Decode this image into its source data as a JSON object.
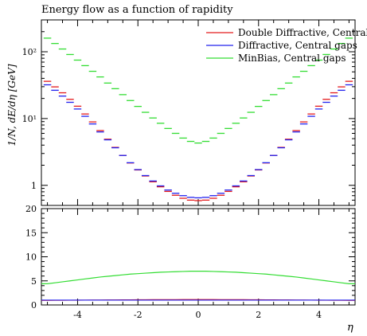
{
  "title": "Energy flow as a function of rapidity",
  "ylabel": "1/N, dE/dη [GeV]",
  "xlabel": "η",
  "chart_data": [
    {
      "type": "line",
      "panel": "main",
      "yscale": "log",
      "ylim": [
        0.5,
        300
      ],
      "xlim": [
        -5.2,
        5.2
      ],
      "yticks": [
        {
          "v": 1,
          "label": "1"
        },
        {
          "v": 10,
          "label": "10¹"
        },
        {
          "v": 100,
          "label": "10²"
        }
      ],
      "legend": "top-right",
      "x": [
        -5.0,
        -4.75,
        -4.5,
        -4.25,
        -4.0,
        -3.75,
        -3.5,
        -3.25,
        -3.0,
        -2.75,
        -2.5,
        -2.25,
        -2.0,
        -1.75,
        -1.5,
        -1.25,
        -1.0,
        -0.75,
        -0.5,
        -0.25,
        0.0,
        0.25,
        0.5,
        0.75,
        1.0,
        1.25,
        1.5,
        1.75,
        2.0,
        2.25,
        2.5,
        2.75,
        3.0,
        3.25,
        3.5,
        3.75,
        4.0,
        4.25,
        4.5,
        4.75,
        5.0
      ],
      "series": [
        {
          "name": "Double Diffractive, Central gaps",
          "color": "#e41a1c",
          "values": [
            36.1,
            29.8,
            24.3,
            19.4,
            15.3,
            11.7,
            8.9,
            6.6,
            4.9,
            3.7,
            2.8,
            2.16,
            1.7,
            1.38,
            1.13,
            0.95,
            0.81,
            0.71,
            0.64,
            0.6,
            0.59,
            0.6,
            0.64,
            0.71,
            0.81,
            0.95,
            1.13,
            1.38,
            1.7,
            2.16,
            2.8,
            3.7,
            4.9,
            6.6,
            8.9,
            11.7,
            15.3,
            19.4,
            24.3,
            29.8,
            36.1
          ]
        },
        {
          "name": "Diffractive, Central gaps",
          "color": "#2222ee",
          "values": [
            32.0,
            26.5,
            21.7,
            17.5,
            13.9,
            10.8,
            8.3,
            6.3,
            4.8,
            3.65,
            2.8,
            2.18,
            1.72,
            1.4,
            1.16,
            0.98,
            0.85,
            0.76,
            0.7,
            0.66,
            0.65,
            0.66,
            0.7,
            0.76,
            0.85,
            0.98,
            1.16,
            1.4,
            1.72,
            2.18,
            2.8,
            3.65,
            4.8,
            6.3,
            8.3,
            10.8,
            13.9,
            17.5,
            21.7,
            26.5,
            32.0
          ]
        },
        {
          "name": "MinBias, Central gaps",
          "color": "#33dd33",
          "values": [
            160.0,
            133.0,
            110.0,
            91.0,
            75.0,
            62.0,
            51.0,
            42.0,
            34.0,
            28.0,
            22.8,
            18.6,
            15.2,
            12.4,
            10.2,
            8.5,
            7.1,
            6.0,
            5.1,
            4.55,
            4.3,
            4.55,
            5.1,
            6.0,
            7.1,
            8.5,
            10.2,
            12.4,
            15.2,
            18.6,
            22.8,
            28.0,
            34.0,
            42.0,
            51.0,
            62.0,
            75.0,
            91.0,
            110.0,
            133.0,
            160.0
          ]
        }
      ]
    },
    {
      "type": "line",
      "panel": "ratio",
      "ylim": [
        0,
        20
      ],
      "xlim": [
        -5.2,
        5.2
      ],
      "yticks": [
        0,
        5,
        10,
        15,
        20
      ],
      "xticks": [
        -4,
        -2,
        0,
        2,
        4
      ],
      "series_colors": [
        "#e41a1c",
        "#2222ee",
        "#33dd33"
      ],
      "series": [
        {
          "values_fn_note": "",
          "values": [
            0.95,
            0.96,
            0.97,
            0.98,
            0.99,
            1.0,
            1.01,
            1.02,
            1.03,
            1.04,
            1.05,
            1.06,
            1.07,
            1.08,
            1.09,
            1.1,
            1.1,
            1.1,
            1.11,
            1.11,
            1.11,
            1.11,
            1.11,
            1.1,
            1.1,
            1.1,
            1.09,
            1.08,
            1.07,
            1.06,
            1.05,
            1.04,
            1.03,
            1.02,
            1.01,
            1.0,
            0.99,
            0.98,
            0.97,
            0.96,
            0.95
          ]
        },
        {
          "values_fn_note": "",
          "values": [
            1.0,
            1.0,
            1.0,
            1.0,
            1.0,
            1.0,
            1.0,
            1.0,
            1.0,
            1.0,
            1.0,
            1.0,
            1.0,
            1.0,
            1.0,
            1.0,
            1.0,
            1.0,
            1.0,
            1.0,
            1.0,
            1.0,
            1.0,
            1.0,
            1.0,
            1.0,
            1.0,
            1.0,
            1.0,
            1.0,
            1.0,
            1.0,
            1.0,
            1.0,
            1.0,
            1.0,
            1.0,
            1.0,
            1.0,
            1.0,
            1.0
          ]
        },
        {
          "values_fn_note": "",
          "values": [
            4.4,
            4.6,
            4.8,
            5.0,
            5.2,
            5.4,
            5.6,
            5.8,
            5.95,
            6.1,
            6.25,
            6.4,
            6.5,
            6.6,
            6.7,
            6.8,
            6.85,
            6.9,
            6.95,
            7.0,
            7.0,
            7.0,
            6.95,
            6.9,
            6.85,
            6.8,
            6.7,
            6.6,
            6.5,
            6.4,
            6.25,
            6.1,
            5.95,
            5.8,
            5.6,
            5.4,
            5.2,
            5.0,
            4.8,
            4.6,
            4.4
          ]
        }
      ]
    }
  ]
}
